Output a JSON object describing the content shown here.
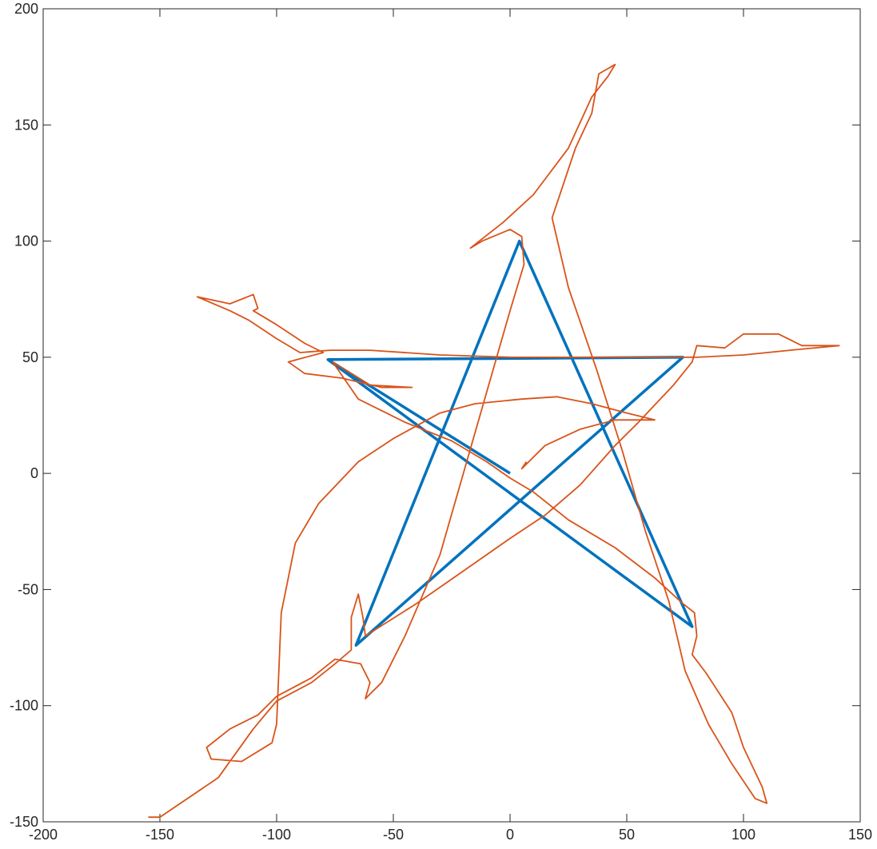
{
  "chart_data": {
    "type": "line",
    "xlim": [
      -200,
      150
    ],
    "ylim": [
      -150,
      200
    ],
    "xticks": [
      -200,
      -150,
      -100,
      -50,
      0,
      50,
      100,
      150
    ],
    "yticks": [
      -150,
      -100,
      -50,
      0,
      50,
      100,
      150,
      200
    ],
    "series": [
      {
        "color": "#0072bd",
        "x": [
          0,
          -78,
          74,
          -66,
          4,
          78,
          -78
        ],
        "values": [
          0,
          49,
          50,
          -74,
          100,
          -66,
          49
        ]
      },
      {
        "color": "#d95319",
        "x": [
          -155,
          -150,
          -125,
          -110,
          -100,
          -85,
          -75,
          -68,
          -68,
          -65,
          -63,
          -62,
          -40,
          -20,
          0,
          15,
          30,
          45,
          55,
          70,
          78,
          80,
          92,
          100,
          115,
          125,
          141,
          120,
          100,
          80,
          60,
          30,
          0,
          -30,
          -60,
          -77,
          -90,
          -100,
          -112,
          -120,
          -134,
          -120,
          -110,
          -108,
          -110,
          -100,
          -88,
          -80,
          -95,
          -88,
          -72,
          -55,
          -42,
          -60,
          -76,
          -65,
          -45,
          -25,
          -10,
          0,
          10,
          25,
          45,
          62,
          74,
          79,
          80,
          78,
          84,
          95,
          100,
          108,
          110,
          105,
          95,
          85,
          75,
          68,
          58,
          48,
          37,
          25,
          18,
          28,
          35,
          38,
          45,
          42,
          35,
          25,
          10,
          -3,
          -17,
          -12,
          0,
          5,
          6,
          0,
          -10,
          -20,
          -30,
          -45,
          -55,
          -62,
          -60,
          -64,
          -75,
          -85,
          -100,
          -108,
          -120,
          -130,
          -128,
          -115,
          -102,
          -100,
          -98,
          -92,
          -82,
          -65,
          -50,
          -30,
          -15,
          5,
          20,
          35,
          50,
          62,
          45,
          30,
          15,
          8,
          5,
          7
        ],
        "values": [
          -148,
          -148,
          -131,
          -110,
          -98,
          -90,
          -82,
          -76,
          -62,
          -52,
          -62,
          -70,
          -56,
          -42,
          -28,
          -18,
          -5,
          12,
          22,
          38,
          48,
          55,
          54,
          60,
          60,
          55,
          55,
          53,
          51,
          50,
          50,
          50,
          50,
          51,
          53,
          53,
          52,
          58,
          66,
          70,
          76,
          73,
          77,
          71,
          70,
          64,
          56,
          52,
          48,
          43,
          41,
          37,
          37,
          38,
          48,
          32,
          22,
          14,
          5,
          -2,
          -8,
          -20,
          -32,
          -45,
          -56,
          -60,
          -70,
          -78,
          -86,
          -103,
          -118,
          -135,
          -142,
          -140,
          -125,
          -108,
          -85,
          -55,
          -25,
          10,
          45,
          80,
          110,
          140,
          155,
          172,
          176,
          171,
          162,
          140,
          120,
          108,
          97,
          100,
          105,
          102,
          90,
          70,
          35,
          0,
          -35,
          -70,
          -90,
          -97,
          -90,
          -82,
          -80,
          -88,
          -96,
          -104,
          -110,
          -118,
          -123,
          -124,
          -116,
          -108,
          -60,
          -30,
          -13,
          5,
          15,
          26,
          30,
          32,
          33,
          30,
          26,
          23,
          23,
          19,
          12,
          5,
          2,
          5
        ]
      }
    ]
  }
}
